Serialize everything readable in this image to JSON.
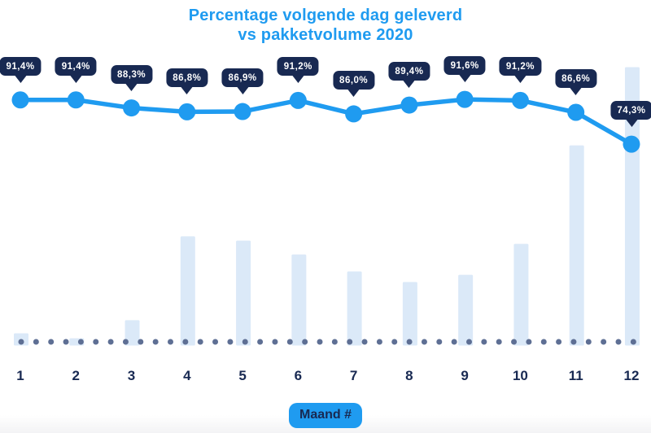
{
  "title": {
    "line1": "Percentage volgende dag geleverd",
    "line2": "vs pakketvolume 2020"
  },
  "colors": {
    "accent_blue": "#1f9bf0",
    "navy": "#182952",
    "bar_fill": "#dbe9f8",
    "baseline_dot": "#5e6f94",
    "callout_text": "#ffffff",
    "background": "#ffffff"
  },
  "chart_data": {
    "type": "combo (line over bar)",
    "title": "Percentage volgende dag geleverd vs pakketvolume 2020",
    "categories": [
      "1",
      "2",
      "3",
      "4",
      "5",
      "6",
      "7",
      "8",
      "9",
      "10",
      "11",
      "12"
    ],
    "x_axis_title": "Maand #",
    "series": [
      {
        "name": "Percentage volgende dag geleverd",
        "type": "line",
        "unit": "%",
        "values": [
          91.4,
          91.4,
          88.3,
          86.8,
          86.9,
          91.2,
          86.0,
          89.4,
          91.6,
          91.2,
          86.6,
          74.3
        ],
        "display_labels": [
          "91,4%",
          "91,4%",
          "88,3%",
          "86,8%",
          "86,9%",
          "91,2%",
          "86,0%",
          "89,4%",
          "91,6%",
          "91,2%",
          "86,6%",
          "74,3%"
        ]
      },
      {
        "name": "Pakketvolume",
        "type": "bar",
        "unit": "relative (no axis shown, % of max bar)",
        "relative_values": [
          4.4,
          2.6,
          9.1,
          39.2,
          37.7,
          32.7,
          26.6,
          22.8,
          25.4,
          36.5,
          71.9,
          100
        ]
      }
    ],
    "layout_hints": {
      "percent_axis_visible": false,
      "volume_axis_visible": false,
      "gridlines": false,
      "legend": "none",
      "baseline": "dotted row of slate dots along x-axis",
      "value_labels": "dark navy speech-bubble callouts above each line point",
      "implied_percent_range_shown": [
        70,
        95
      ]
    }
  }
}
